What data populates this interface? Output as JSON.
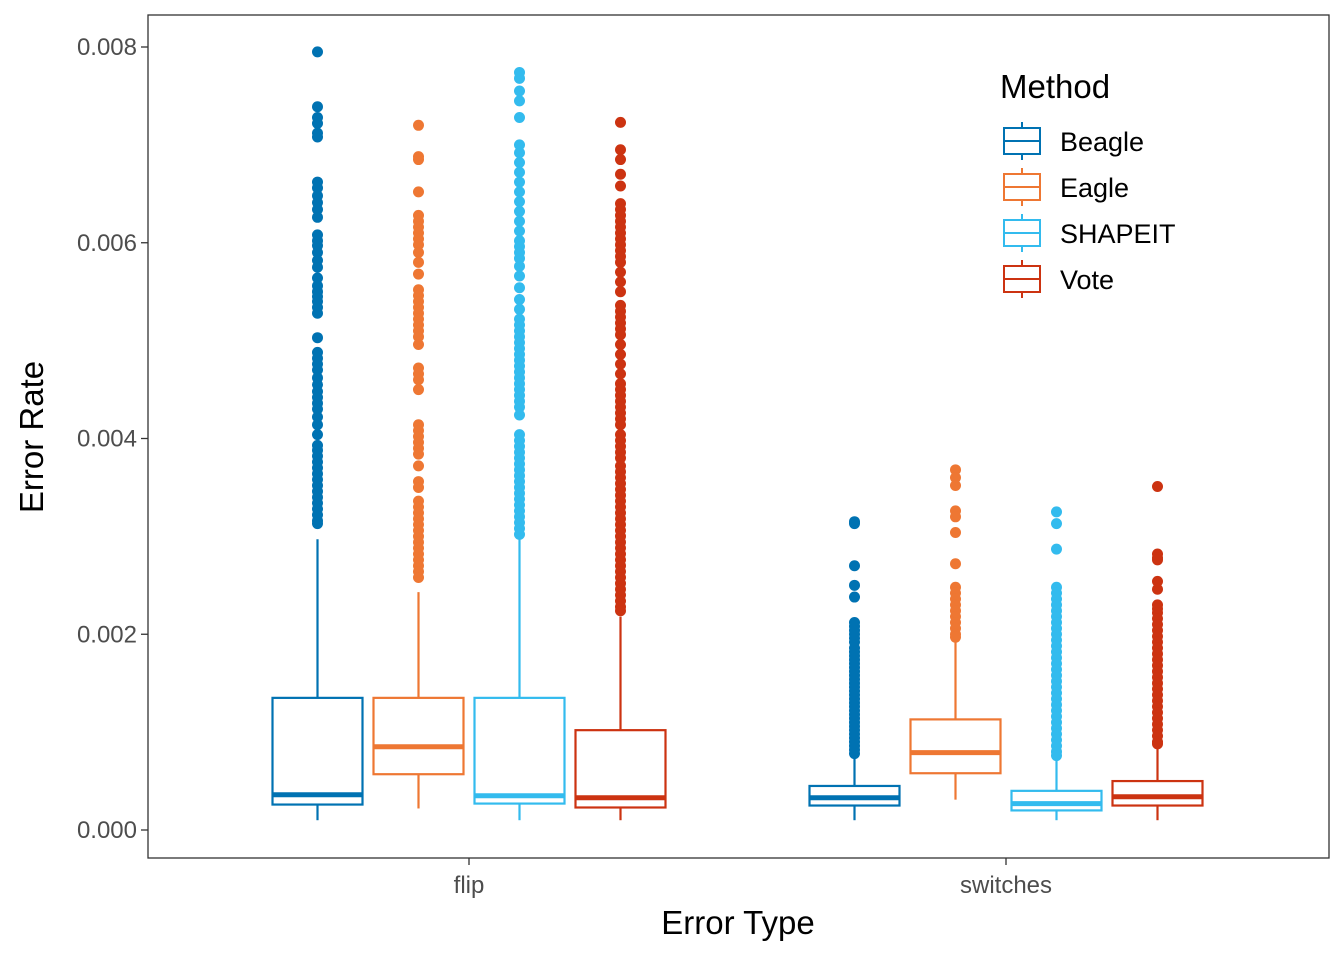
{
  "chart_data": {
    "type": "box",
    "xlabel": "Error Type",
    "ylabel": "Error Rate",
    "ylim": [
      -0.0001,
      0.0083
    ],
    "y_ticks": [
      {
        "value": 0.0,
        "label": "0.000"
      },
      {
        "value": 0.002,
        "label": "0.002"
      },
      {
        "value": 0.004,
        "label": "0.004"
      },
      {
        "value": 0.006,
        "label": "0.006"
      },
      {
        "value": 0.008,
        "label": "0.008"
      }
    ],
    "categories": [
      "flip",
      "switches"
    ],
    "legend": {
      "title": "Method",
      "position": "top-right"
    },
    "grid": false,
    "series": [
      {
        "name": "Beagle",
        "color": "#0072B2",
        "boxes": [
          {
            "category": "flip",
            "whisker_low": 0.0001,
            "q1": 0.00026,
            "median": 0.00036,
            "q3": 0.00135,
            "whisker_high": 0.00297,
            "outliers": [
              0.00795,
              0.00739,
              0.00728,
              0.00722,
              0.00712,
              0.00708,
              0.00662,
              0.00656,
              0.00648,
              0.00641,
              0.00634,
              0.00626,
              0.00608,
              0.00602,
              0.00597,
              0.0059,
              0.00582,
              0.00575,
              0.00564,
              0.00556,
              0.0055,
              0.00545,
              0.0054,
              0.00534,
              0.00528,
              0.00503,
              0.00488,
              0.00482,
              0.00476,
              0.0047,
              0.00462,
              0.00455,
              0.00448,
              0.00442,
              0.00436,
              0.0043,
              0.00422,
              0.00414,
              0.00404,
              0.00393,
              0.00388,
              0.00382,
              0.00376,
              0.0037,
              0.00364,
              0.00358,
              0.00352,
              0.00346,
              0.0034,
              0.00334,
              0.00328,
              0.00322,
              0.00316,
              0.00313
            ]
          },
          {
            "category": "switches",
            "whisker_low": 0.0001,
            "q1": 0.00025,
            "median": 0.00033,
            "q3": 0.00045,
            "whisker_high": 0.00075,
            "outliers": [
              0.00315,
              0.00313,
              0.0027,
              0.0025,
              0.00238,
              0.00212,
              0.00208,
              0.00204,
              0.002,
              0.00196,
              0.00192,
              0.00186,
              0.00182,
              0.00178,
              0.00174,
              0.0017,
              0.00166,
              0.00162,
              0.00158,
              0.00154,
              0.0015,
              0.00146,
              0.00142,
              0.00138,
              0.00134,
              0.0013,
              0.00126,
              0.00122,
              0.00118,
              0.00114,
              0.0011,
              0.00106,
              0.00102,
              0.00098,
              0.00094,
              0.0009,
              0.00086,
              0.00082,
              0.00078
            ]
          }
        ]
      },
      {
        "name": "Eagle",
        "color": "#EE7733",
        "boxes": [
          {
            "category": "flip",
            "whisker_low": 0.00022,
            "q1": 0.00057,
            "median": 0.00085,
            "q3": 0.00135,
            "whisker_high": 0.00243,
            "outliers": [
              0.0072,
              0.00688,
              0.00685,
              0.00652,
              0.00628,
              0.00622,
              0.00616,
              0.0061,
              0.00604,
              0.00598,
              0.0059,
              0.0058,
              0.00568,
              0.00552,
              0.00546,
              0.0054,
              0.00534,
              0.00528,
              0.00522,
              0.00516,
              0.0051,
              0.00504,
              0.00496,
              0.00472,
              0.00466,
              0.0046,
              0.0045,
              0.00414,
              0.00408,
              0.00402,
              0.00396,
              0.0039,
              0.00384,
              0.00372,
              0.00356,
              0.0035,
              0.00336,
              0.0033,
              0.00324,
              0.00318,
              0.00312,
              0.00306,
              0.003,
              0.00294,
              0.00288,
              0.00282,
              0.00276,
              0.0027,
              0.00264,
              0.00258
            ]
          },
          {
            "category": "switches",
            "whisker_low": 0.00031,
            "q1": 0.00058,
            "median": 0.00079,
            "q3": 0.00113,
            "whisker_high": 0.00196,
            "outliers": [
              0.00368,
              0.0036,
              0.00352,
              0.00326,
              0.0032,
              0.00304,
              0.00272,
              0.00248,
              0.00242,
              0.00236,
              0.0023,
              0.00224,
              0.00218,
              0.00212,
              0.00206,
              0.002,
              0.00197
            ]
          }
        ]
      },
      {
        "name": "SHAPEIT",
        "color": "#33BBEE",
        "boxes": [
          {
            "category": "flip",
            "whisker_low": 0.0001,
            "q1": 0.00027,
            "median": 0.00035,
            "q3": 0.00135,
            "whisker_high": 0.003,
            "outliers": [
              0.00774,
              0.00768,
              0.00755,
              0.00745,
              0.00728,
              0.007,
              0.00692,
              0.00682,
              0.00672,
              0.00662,
              0.00652,
              0.00642,
              0.00632,
              0.00622,
              0.00612,
              0.00602,
              0.00596,
              0.0059,
              0.00584,
              0.00576,
              0.00566,
              0.00554,
              0.00542,
              0.00532,
              0.00522,
              0.00516,
              0.0051,
              0.00504,
              0.00498,
              0.00492,
              0.00486,
              0.0048,
              0.00474,
              0.00468,
              0.00462,
              0.00456,
              0.0045,
              0.00444,
              0.00438,
              0.00432,
              0.00424,
              0.00404,
              0.00398,
              0.00392,
              0.00386,
              0.0038,
              0.00374,
              0.00368,
              0.00362,
              0.00356,
              0.0035,
              0.00344,
              0.00338,
              0.00332,
              0.00326,
              0.0032,
              0.00314,
              0.00308,
              0.00302
            ]
          },
          {
            "category": "switches",
            "whisker_low": 0.0001,
            "q1": 0.0002,
            "median": 0.00027,
            "q3": 0.0004,
            "whisker_high": 0.00074,
            "outliers": [
              0.00325,
              0.00313,
              0.00287,
              0.00248,
              0.00242,
              0.00236,
              0.0023,
              0.00224,
              0.00218,
              0.00212,
              0.00206,
              0.002,
              0.00194,
              0.00188,
              0.00182,
              0.00176,
              0.0017,
              0.00164,
              0.00158,
              0.00152,
              0.00146,
              0.0014,
              0.00134,
              0.00128,
              0.00122,
              0.00116,
              0.0011,
              0.00104,
              0.00098,
              0.00092,
              0.00086,
              0.0008,
              0.00076
            ]
          }
        ]
      },
      {
        "name": "Vote",
        "color": "#CC3311",
        "boxes": [
          {
            "category": "flip",
            "whisker_low": 0.0001,
            "q1": 0.00023,
            "median": 0.00033,
            "q3": 0.00102,
            "whisker_high": 0.00218,
            "outliers": [
              0.00723,
              0.00695,
              0.00685,
              0.0067,
              0.00658,
              0.0064,
              0.00634,
              0.00628,
              0.00622,
              0.00616,
              0.0061,
              0.00604,
              0.00598,
              0.00592,
              0.00586,
              0.0058,
              0.0057,
              0.0056,
              0.0055,
              0.00536,
              0.0053,
              0.00524,
              0.00518,
              0.00512,
              0.00506,
              0.00496,
              0.00486,
              0.00476,
              0.00466,
              0.00456,
              0.0045,
              0.00444,
              0.00438,
              0.00432,
              0.00426,
              0.0042,
              0.00414,
              0.00404,
              0.00398,
              0.00392,
              0.00386,
              0.0038,
              0.00372,
              0.00366,
              0.0036,
              0.00354,
              0.00348,
              0.00342,
              0.00336,
              0.0033,
              0.00324,
              0.00318,
              0.00312,
              0.00306,
              0.003,
              0.00294,
              0.00288,
              0.00282,
              0.00276,
              0.0027,
              0.00264,
              0.00258,
              0.00252,
              0.00246,
              0.0024,
              0.00234,
              0.00228,
              0.00224
            ]
          },
          {
            "category": "switches",
            "whisker_low": 0.0001,
            "q1": 0.00025,
            "median": 0.00034,
            "q3": 0.0005,
            "whisker_high": 0.00086,
            "outliers": [
              0.00351,
              0.00282,
              0.00278,
              0.00276,
              0.00254,
              0.00246,
              0.0023,
              0.00226,
              0.00222,
              0.00216,
              0.0021,
              0.00204,
              0.00198,
              0.00192,
              0.00186,
              0.0018,
              0.00174,
              0.00168,
              0.00162,
              0.00156,
              0.0015,
              0.00144,
              0.00138,
              0.00132,
              0.00126,
              0.0012,
              0.00114,
              0.00108,
              0.00102,
              0.00096,
              0.0009,
              0.00088
            ]
          }
        ]
      }
    ]
  }
}
